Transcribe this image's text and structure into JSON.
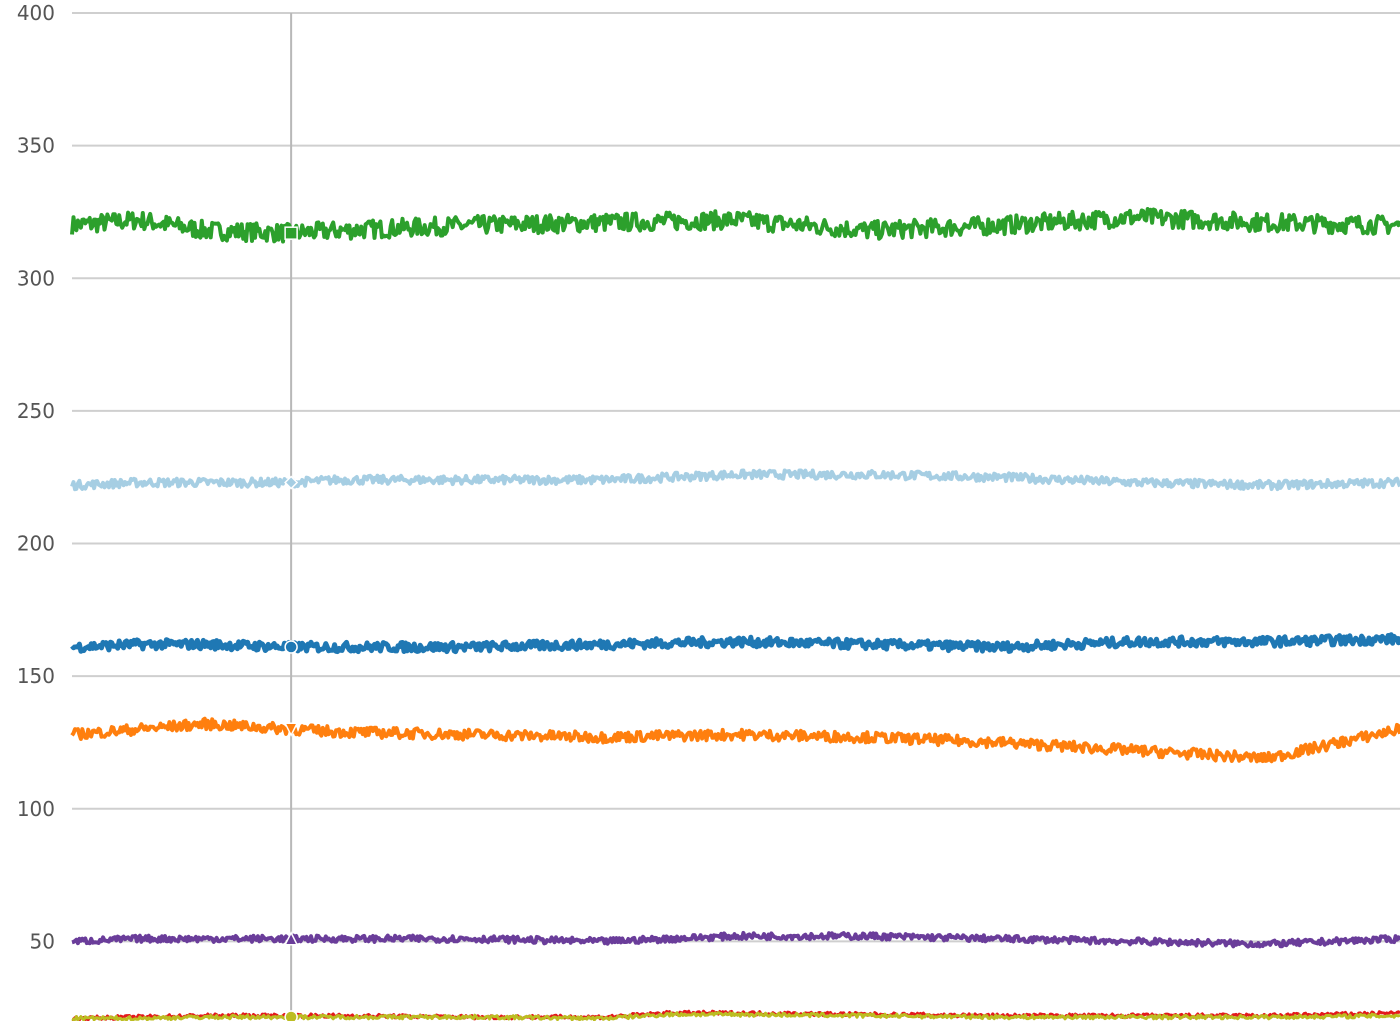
{
  "chart_data": {
    "type": "line",
    "title": "",
    "xlabel": "",
    "ylabel": "",
    "ylim": [
      20,
      400
    ],
    "xlim": [
      0,
      1
    ],
    "grid": true,
    "y_ticks": [
      400,
      350,
      300,
      250,
      200,
      150,
      100,
      50
    ],
    "y_tick_labels": [
      "400",
      "350",
      "300",
      "250",
      "200",
      "150",
      "100",
      "50"
    ],
    "cursor": {
      "x": 0.165
    },
    "series": [
      {
        "color": "#2ca02c",
        "marker": "square",
        "x": [
          0.0,
          0.05,
          0.1,
          0.165,
          0.2,
          0.3,
          0.4,
          0.5,
          0.6,
          0.7,
          0.8,
          0.9,
          1.0
        ],
        "y": [
          320,
          322,
          318,
          317,
          318,
          320,
          321,
          322,
          318,
          320,
          323,
          321,
          320
        ]
      },
      {
        "color": "#a6cee3",
        "marker": "diamond",
        "x": [
          0.0,
          0.05,
          0.1,
          0.165,
          0.2,
          0.3,
          0.4,
          0.5,
          0.6,
          0.7,
          0.8,
          0.9,
          1.0
        ],
        "y": [
          222,
          223,
          223,
          223,
          224,
          224,
          224,
          226,
          226,
          225,
          223,
          222,
          223
        ]
      },
      {
        "color": "#1f78b4",
        "marker": "circle",
        "x": [
          0.0,
          0.05,
          0.1,
          0.165,
          0.2,
          0.3,
          0.4,
          0.5,
          0.6,
          0.7,
          0.8,
          0.9,
          1.0
        ],
        "y": [
          161,
          162,
          162,
          161,
          161,
          161,
          162,
          163,
          162,
          161,
          163,
          163,
          164
        ]
      },
      {
        "color": "#ff7f0e",
        "marker": "triangle-down",
        "x": [
          0.0,
          0.05,
          0.1,
          0.165,
          0.2,
          0.3,
          0.4,
          0.5,
          0.6,
          0.7,
          0.8,
          0.9,
          1.0
        ],
        "y": [
          128,
          130,
          132,
          130,
          129,
          128,
          127,
          128,
          127,
          125,
          122,
          119,
          130
        ]
      },
      {
        "color": "#6a3d9a",
        "marker": "triangle-up",
        "x": [
          0.0,
          0.05,
          0.1,
          0.165,
          0.2,
          0.3,
          0.4,
          0.5,
          0.6,
          0.7,
          0.8,
          0.9,
          1.0
        ],
        "y": [
          50,
          51,
          51,
          51,
          51,
          51,
          50,
          52,
          52,
          51,
          50,
          49,
          51
        ]
      },
      {
        "color": "#e31a1c",
        "marker": "none",
        "x": [
          0.0,
          0.05,
          0.1,
          0.165,
          0.2,
          0.3,
          0.4,
          0.45,
          0.5,
          0.6,
          0.7,
          0.8,
          0.9,
          1.0
        ],
        "y": [
          21,
          21.5,
          22,
          22,
          22,
          21.5,
          21.5,
          23,
          23,
          22.5,
          22,
          22,
          22,
          23
        ]
      },
      {
        "color": "#bcbd22",
        "marker": "circle",
        "x": [
          0.0,
          0.05,
          0.1,
          0.165,
          0.2,
          0.3,
          0.4,
          0.45,
          0.5,
          0.6,
          0.7,
          0.8,
          0.9,
          1.0
        ],
        "y": [
          21,
          21,
          21.5,
          21.5,
          21.5,
          21.5,
          21,
          22.5,
          22.5,
          22,
          21.5,
          21.5,
          21.5,
          22
        ]
      }
    ]
  }
}
